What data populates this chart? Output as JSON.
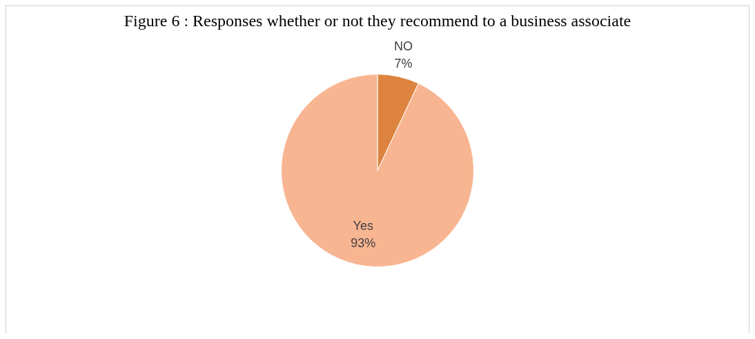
{
  "chart_data": {
    "type": "pie",
    "title": "Figure 6 : Responses whether or not they recommend to a business associate",
    "categories": [
      "NO",
      "Yes"
    ],
    "values": [
      7,
      93
    ],
    "colors": [
      "#dc843f",
      "#f8b591"
    ],
    "value_labels": [
      "7%",
      "93%"
    ]
  }
}
